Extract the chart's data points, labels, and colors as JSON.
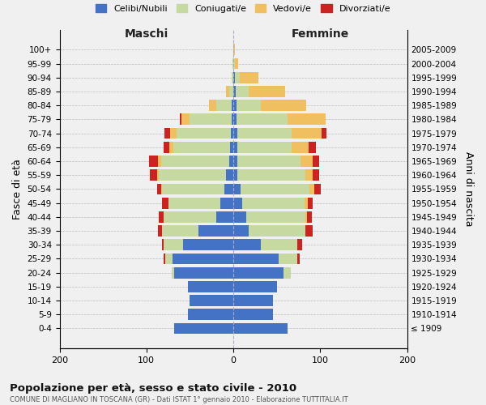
{
  "age_groups": [
    "100+",
    "95-99",
    "90-94",
    "85-89",
    "80-84",
    "75-79",
    "70-74",
    "65-69",
    "60-64",
    "55-59",
    "50-54",
    "45-49",
    "40-44",
    "35-39",
    "30-34",
    "25-29",
    "20-24",
    "15-19",
    "10-14",
    "5-9",
    "0-4"
  ],
  "birth_years": [
    "≤ 1909",
    "1910-1914",
    "1915-1919",
    "1920-1924",
    "1925-1929",
    "1930-1934",
    "1935-1939",
    "1940-1944",
    "1945-1949",
    "1950-1954",
    "1955-1959",
    "1960-1964",
    "1965-1969",
    "1970-1974",
    "1975-1979",
    "1980-1984",
    "1985-1989",
    "1990-1994",
    "1995-1999",
    "2000-2004",
    "2005-2009"
  ],
  "maschi": {
    "celibi": [
      0,
      0,
      0,
      0,
      2,
      2,
      3,
      4,
      5,
      8,
      10,
      15,
      20,
      40,
      58,
      70,
      68,
      52,
      50,
      52,
      68
    ],
    "coniugati": [
      0,
      1,
      2,
      5,
      18,
      48,
      62,
      65,
      78,
      78,
      72,
      60,
      60,
      42,
      22,
      8,
      3,
      0,
      0,
      0,
      0
    ],
    "vedovi": [
      0,
      0,
      0,
      3,
      8,
      10,
      8,
      5,
      4,
      2,
      1,
      0,
      0,
      0,
      0,
      0,
      0,
      0,
      0,
      0,
      0
    ],
    "divorziati": [
      0,
      0,
      0,
      0,
      0,
      2,
      6,
      6,
      10,
      8,
      5,
      7,
      6,
      5,
      2,
      2,
      0,
      0,
      0,
      0,
      0
    ]
  },
  "femmine": {
    "nubili": [
      0,
      0,
      2,
      3,
      4,
      4,
      5,
      5,
      5,
      5,
      8,
      10,
      15,
      18,
      32,
      52,
      58,
      50,
      46,
      46,
      62
    ],
    "coniugate": [
      0,
      2,
      5,
      15,
      28,
      58,
      62,
      62,
      72,
      78,
      80,
      72,
      68,
      65,
      42,
      22,
      8,
      0,
      0,
      0,
      0
    ],
    "vedove": [
      2,
      4,
      22,
      42,
      52,
      44,
      35,
      20,
      14,
      8,
      5,
      4,
      2,
      0,
      0,
      0,
      0,
      0,
      0,
      0,
      0
    ],
    "divorziate": [
      0,
      0,
      0,
      0,
      0,
      0,
      5,
      8,
      8,
      8,
      8,
      5,
      5,
      8,
      5,
      2,
      0,
      0,
      0,
      0,
      0
    ]
  },
  "colors": {
    "celibi_nubili": "#4472c4",
    "coniugati": "#c5d9a0",
    "vedovi": "#f0c060",
    "divorziati": "#cc2222"
  },
  "xlim": [
    -200,
    200
  ],
  "xticks": [
    -200,
    -100,
    0,
    100,
    200
  ],
  "xticklabels": [
    "200",
    "100",
    "0",
    "100",
    "200"
  ],
  "title": "Popolazione per età, sesso e stato civile - 2010",
  "subtitle": "COMUNE DI MAGLIANO IN TOSCANA (GR) - Dati ISTAT 1° gennaio 2010 - Elaborazione TUTTITALIA.IT",
  "ylabel_left": "Fasce di età",
  "ylabel_right": "Anni di nascita",
  "label_maschi": "Maschi",
  "label_femmine": "Femmine",
  "legend_labels": [
    "Celibi/Nubili",
    "Coniugati/e",
    "Vedovi/e",
    "Divorziati/e"
  ],
  "bg_color": "#f0f0f0",
  "plot_bg_color": "#f0f0f0"
}
